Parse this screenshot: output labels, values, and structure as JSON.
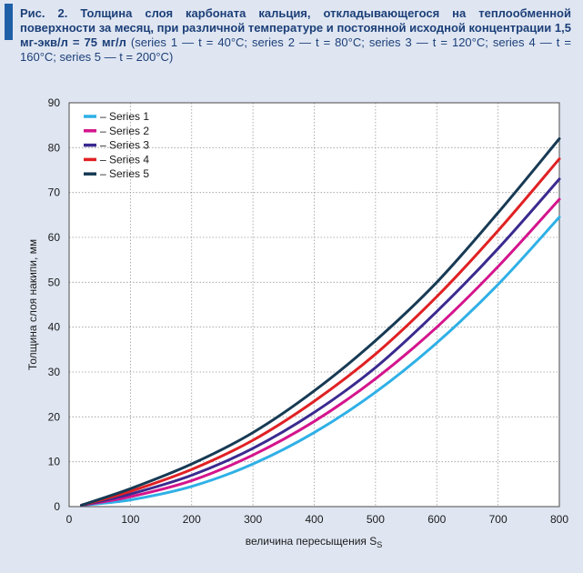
{
  "caption": {
    "bold": "Рис. 2. Толщина слоя карбоната кальция, откладывающегося на теплообменной поверхности за месяц, при различной температуре и постоянной исходной концентрации 1,5 мг-экв/л = 75 мг/л",
    "normal": "(series 1 — t = 40°C; series 2 — t = 80°C; series 3 — t = 120°C; series 4 — t = 160°C; series 5 — t = 200°C)"
  },
  "chart_data": {
    "type": "line",
    "title": "",
    "xlabel": "величина пересыщения S",
    "xlabel_subscript": "S",
    "ylabel": "Толщина слоя накипи, мм",
    "xlim": [
      0,
      800
    ],
    "ylim": [
      0,
      90
    ],
    "xticks": [
      0,
      100,
      200,
      300,
      400,
      500,
      600,
      700,
      800
    ],
    "yticks": [
      0,
      10,
      20,
      30,
      40,
      50,
      60,
      70,
      80,
      90
    ],
    "grid": true,
    "legend_position": "top-left",
    "x": [
      20,
      100,
      200,
      300,
      400,
      500,
      600,
      700,
      800
    ],
    "series": [
      {
        "name": "– Series 1",
        "color": "#2fb0e6",
        "values": [
          0.3,
          1.5,
          4.5,
          9.5,
          16.5,
          25.5,
          36.5,
          49.5,
          64.5
        ]
      },
      {
        "name": "– Series 2",
        "color": "#d4148c",
        "values": [
          0.3,
          2.2,
          5.8,
          11.5,
          19.0,
          28.5,
          40.0,
          53.5,
          68.5
        ]
      },
      {
        "name": "– Series 3",
        "color": "#3a2a8f",
        "values": [
          0.3,
          2.8,
          7.0,
          13.0,
          21.0,
          31.0,
          43.5,
          57.5,
          73.0
        ]
      },
      {
        "name": "– Series 4",
        "color": "#e02124",
        "values": [
          0.3,
          3.4,
          8.3,
          14.8,
          23.5,
          34.0,
          46.8,
          61.5,
          77.5
        ]
      },
      {
        "name": "– Series 5",
        "color": "#173a54",
        "values": [
          0.3,
          4.0,
          9.5,
          16.5,
          25.8,
          37.0,
          50.0,
          65.5,
          82.0
        ]
      }
    ]
  }
}
